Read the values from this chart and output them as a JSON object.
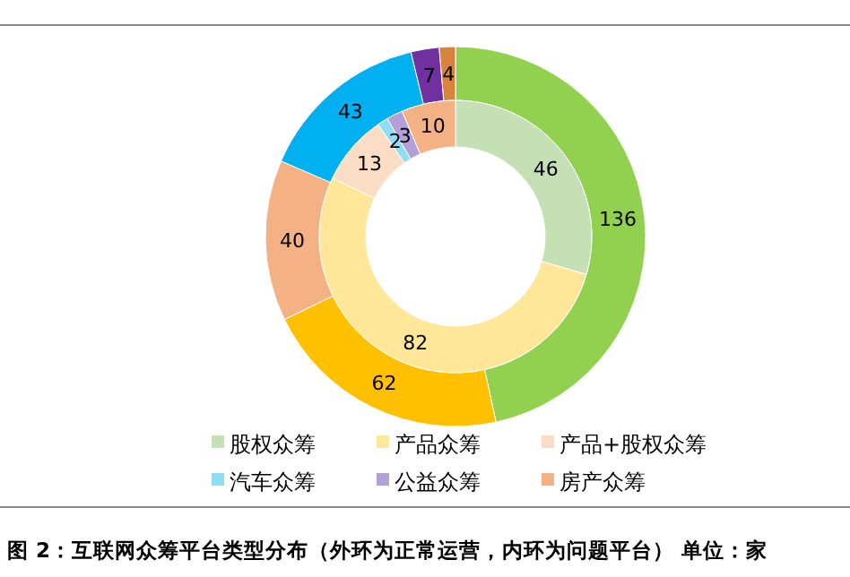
{
  "chart_data": {
    "type": "donut",
    "title": "图 2：互联网众筹平台类型分布（外环为正常运营，内环为问题平台） 单位：家",
    "categories": [
      "股权众筹",
      "产品众筹",
      "产品+股权众筹",
      "汽车众筹",
      "公益众筹",
      "房产众筹"
    ],
    "series": [
      {
        "values": [
          136,
          62,
          40,
          43,
          7,
          4
        ],
        "colors": [
          "#92d050",
          "#ffc000",
          "#f4b183",
          "#00b0f0",
          "#7030a0",
          "#d9843c"
        ]
      },
      {
        "values": [
          46,
          82,
          13,
          2,
          3,
          10
        ],
        "colors": [
          "#c5e0b4",
          "#ffe699",
          "#fbdcc4",
          "#8fdcf5",
          "#b4a0d8",
          "#f4b183"
        ]
      }
    ],
    "data_labels": true,
    "legend": "bottom"
  }
}
